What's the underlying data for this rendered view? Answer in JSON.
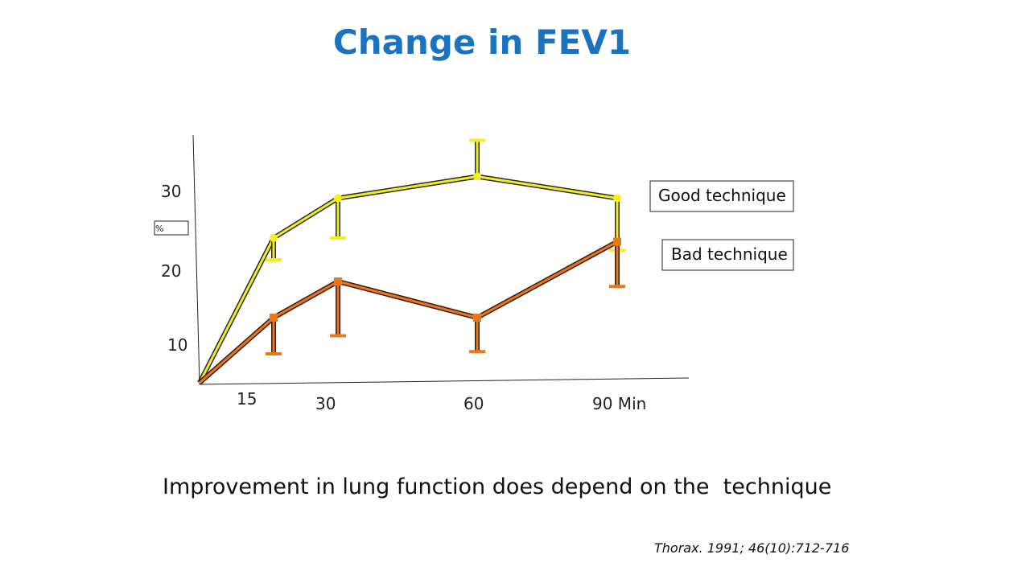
{
  "slide": {
    "title": "Change in FEV1",
    "caption": "Improvement in lung function does depend on the  technique",
    "citation": "Thorax. 1991; 46(10):712-716"
  },
  "chart_data": {
    "type": "line",
    "title": "Change in FEV1",
    "ylabel": "%",
    "xlabel": "",
    "y_ticks": [
      "10",
      "20",
      "30"
    ],
    "x_ticks": [
      {
        "x": 15,
        "label": "15"
      },
      {
        "x": 30,
        "label": "30"
      },
      {
        "x": 60,
        "label": "60"
      },
      {
        "x": 90,
        "label": "90 Min"
      }
    ],
    "xlim": [
      0,
      100
    ],
    "ylim": [
      0,
      36
    ],
    "grid": false,
    "legend_placement": "right",
    "series": [
      {
        "name": "Good technique",
        "color": "#f5ee1c",
        "outline": "#2a2a2a",
        "points": [
          {
            "x": 0,
            "y": 0
          },
          {
            "x": 15,
            "y": 20,
            "err_low": 17,
            "err_high": null
          },
          {
            "x": 30,
            "y": 25.5,
            "err_low": 20,
            "err_high": null
          },
          {
            "x": 60,
            "y": 28.5,
            "err_low": null,
            "err_high": 33.5
          },
          {
            "x": 90,
            "y": 25.5,
            "err_low": 18.3,
            "err_high": null
          }
        ]
      },
      {
        "name": "Bad technique",
        "color": "#e8771e",
        "outline": "#3a1a08",
        "points": [
          {
            "x": 0,
            "y": 0
          },
          {
            "x": 15,
            "y": 9,
            "err_low": 4,
            "err_high": null
          },
          {
            "x": 30,
            "y": 14,
            "err_low": 6.5,
            "err_high": null
          },
          {
            "x": 60,
            "y": 9,
            "err_low": 4.3,
            "err_high": null
          },
          {
            "x": 90,
            "y": 19.5,
            "err_low": 13.3,
            "err_high": null
          }
        ]
      }
    ]
  }
}
